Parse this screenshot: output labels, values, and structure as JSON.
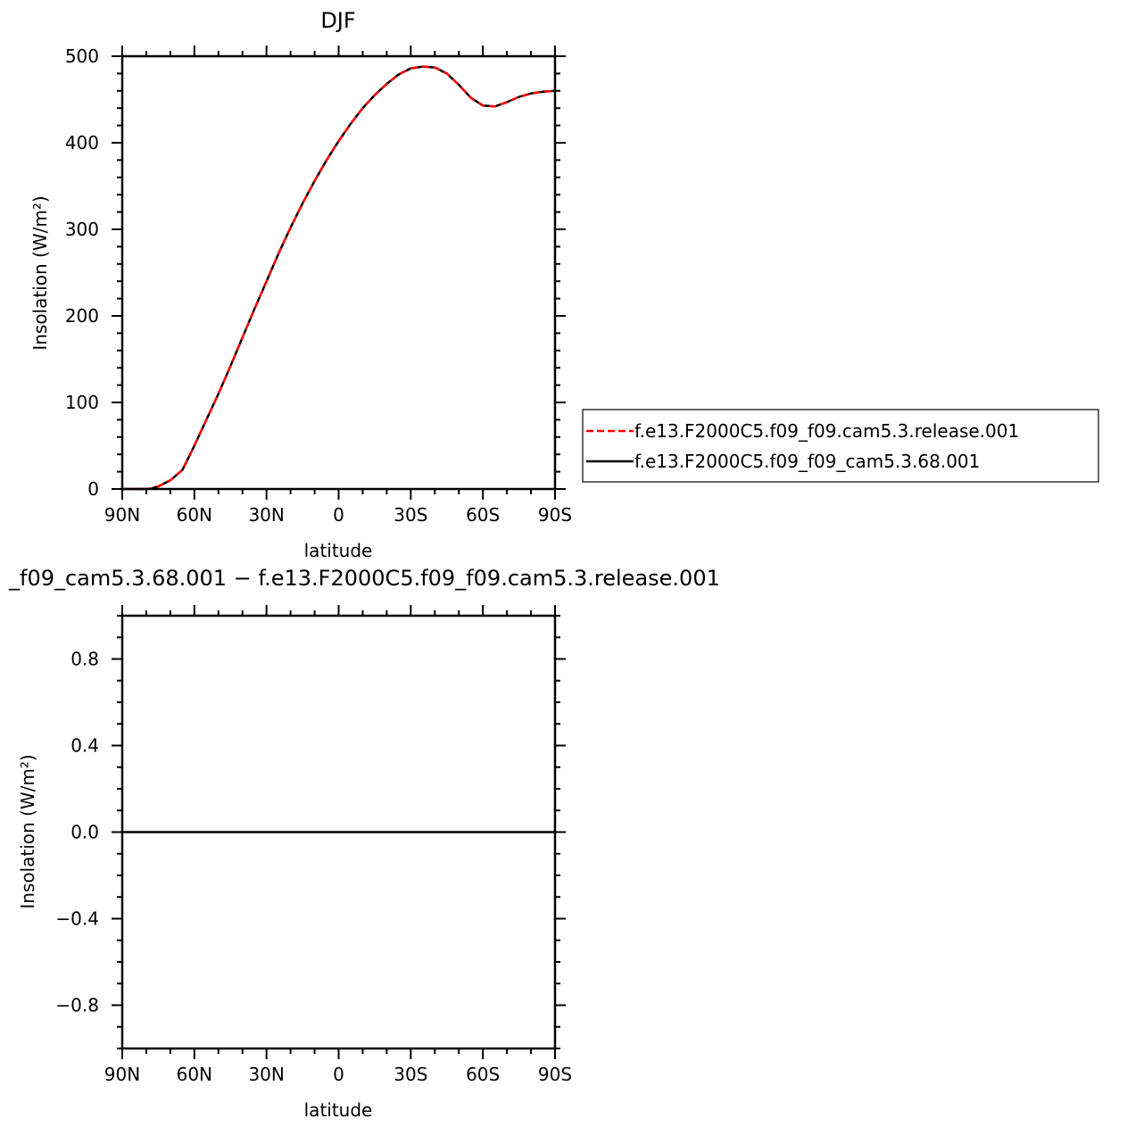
{
  "chart_data": [
    {
      "type": "line",
      "title": "DJF",
      "xlabel": "latitude",
      "ylabel": "Insolation  (W/m²)",
      "xlim": [
        -90,
        90
      ],
      "ylim": [
        0,
        500
      ],
      "x_ticks": [
        {
          "value": -90,
          "label": "90N"
        },
        {
          "value": -60,
          "label": "60N"
        },
        {
          "value": -30,
          "label": "30N"
        },
        {
          "value": 0,
          "label": "0"
        },
        {
          "value": 30,
          "label": "30S"
        },
        {
          "value": 60,
          "label": "60S"
        },
        {
          "value": 90,
          "label": "90S"
        }
      ],
      "y_ticks": [
        {
          "value": 0,
          "label": "0"
        },
        {
          "value": 100,
          "label": "100"
        },
        {
          "value": 200,
          "label": "200"
        },
        {
          "value": 300,
          "label": "300"
        },
        {
          "value": 400,
          "label": "400"
        },
        {
          "value": 500,
          "label": "500"
        }
      ],
      "x": [
        -90,
        -80,
        -78,
        -75,
        -70,
        -65,
        -60,
        -55,
        -50,
        -45,
        -40,
        -35,
        -30,
        -25,
        -20,
        -15,
        -10,
        -5,
        0,
        5,
        10,
        15,
        20,
        25,
        30,
        35,
        40,
        45,
        50,
        55,
        60,
        65,
        70,
        75,
        80,
        85,
        90
      ],
      "series": [
        {
          "name": "f.e13.F2000C5.f09_f09.cam5.3.release.001",
          "color": "#ff0000",
          "style": "dashed",
          "values": [
            0,
            0,
            0.5,
            3,
            10,
            22,
            50,
            80,
            110,
            142,
            175,
            208,
            240,
            272,
            302,
            330,
            356,
            380,
            402,
            422,
            440,
            455,
            468,
            479,
            486,
            488,
            487,
            480,
            467,
            452,
            443,
            442,
            447,
            453,
            457,
            459,
            460
          ]
        },
        {
          "name": "f.e13.F2000C5.f09_f09_cam5.3.68.001",
          "color": "#000000",
          "style": "solid",
          "values": [
            0,
            0,
            0.5,
            3,
            10,
            22,
            50,
            80,
            110,
            142,
            175,
            208,
            240,
            272,
            302,
            330,
            356,
            380,
            402,
            422,
            440,
            455,
            468,
            479,
            486,
            488,
            487,
            480,
            467,
            452,
            443,
            442,
            447,
            453,
            457,
            459,
            460
          ]
        }
      ],
      "legend": "right"
    },
    {
      "type": "line",
      "title": "_f09_cam5.3.68.001  −  f.e13.F2000C5.f09_f09.cam5.3.release.001",
      "xlabel": "latitude",
      "ylabel": "Insolation  (W/m²)",
      "xlim": [
        -90,
        90
      ],
      "ylim": [
        -1,
        1
      ],
      "x_ticks": [
        {
          "value": -90,
          "label": "90N"
        },
        {
          "value": -60,
          "label": "60N"
        },
        {
          "value": -30,
          "label": "30N"
        },
        {
          "value": 0,
          "label": "0"
        },
        {
          "value": 30,
          "label": "30S"
        },
        {
          "value": 60,
          "label": "60S"
        },
        {
          "value": 90,
          "label": "90S"
        }
      ],
      "y_ticks": [
        {
          "value": -0.8,
          "label": "−0.8"
        },
        {
          "value": -0.4,
          "label": "−0.4"
        },
        {
          "value": 0,
          "label": "0.0"
        },
        {
          "value": 0.4,
          "label": "0.4"
        },
        {
          "value": 0.8,
          "label": "0.8"
        }
      ],
      "x": [
        -90,
        90
      ],
      "series": [
        {
          "color": "#000000",
          "style": "solid",
          "values": [
            0,
            0
          ]
        }
      ]
    }
  ]
}
